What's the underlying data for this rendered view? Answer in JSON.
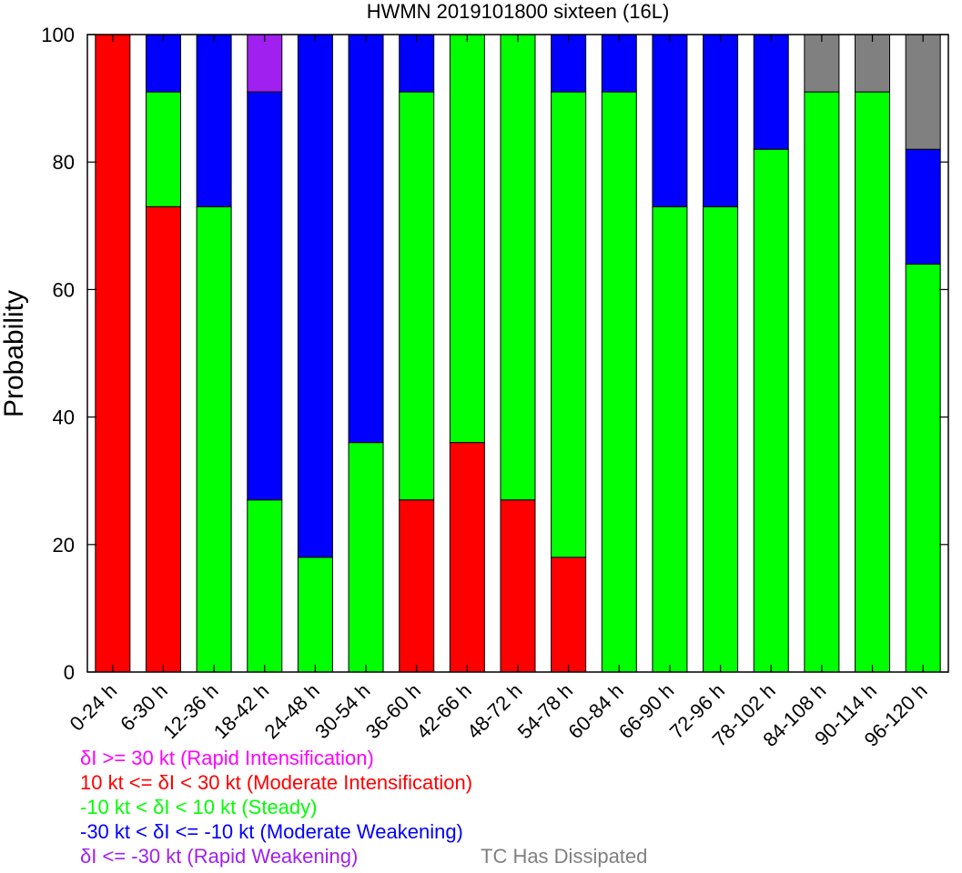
{
  "chart_data": {
    "type": "bar",
    "stacked": true,
    "title": "HWMN 2019101800 sixteen (16L)",
    "xlabel": "",
    "ylabel": "Probability",
    "ylim": [
      0,
      100
    ],
    "yticks": [
      0,
      20,
      40,
      60,
      80,
      100
    ],
    "grid": false,
    "categories": [
      "0-24 h",
      "6-30 h",
      "12-36 h",
      "18-42 h",
      "24-48 h",
      "30-54 h",
      "36-60 h",
      "42-66 h",
      "48-72 h",
      "54-78 h",
      "60-84 h",
      "66-90 h",
      "72-96 h",
      "78-102 h",
      "84-108 h",
      "90-114 h",
      "96-120 h"
    ],
    "series": [
      {
        "name": "δI >= 30 kt (Rapid Intensification)",
        "color": "#ff00ff",
        "values": [
          0,
          0,
          0,
          0,
          0,
          0,
          0,
          0,
          0,
          0,
          0,
          0,
          0,
          0,
          0,
          0,
          0
        ]
      },
      {
        "name": "10 kt <= δI < 30 kt (Moderate Intensification)",
        "color": "#ff0000",
        "values": [
          100,
          73,
          0,
          0,
          0,
          0,
          27,
          36,
          27,
          18,
          0,
          0,
          0,
          0,
          0,
          0,
          0
        ]
      },
      {
        "name": "-10 kt < δI < 10 kt (Steady)",
        "color": "#00ff00",
        "values": [
          0,
          18,
          73,
          27,
          18,
          36,
          64,
          64,
          73,
          73,
          91,
          73,
          73,
          82,
          91,
          91,
          64
        ]
      },
      {
        "name": "-30 kt < δI <= -10 kt (Moderate Weakening)",
        "color": "#0000ff",
        "values": [
          0,
          9,
          27,
          64,
          82,
          64,
          9,
          0,
          0,
          9,
          9,
          27,
          27,
          18,
          0,
          0,
          18
        ]
      },
      {
        "name": "δI <= -30 kt (Rapid Weakening)",
        "color": "#a020f0",
        "values": [
          0,
          0,
          0,
          9,
          0,
          0,
          0,
          0,
          0,
          0,
          0,
          0,
          0,
          0,
          0,
          0,
          0
        ]
      },
      {
        "name": "TC Has Dissipated",
        "color": "#808080",
        "values": [
          0,
          0,
          0,
          0,
          0,
          0,
          0,
          0,
          0,
          0,
          0,
          0,
          0,
          0,
          9,
          9,
          18
        ]
      }
    ]
  },
  "legend": {
    "ri": "δI >= 30 kt (Rapid Intensification)",
    "mi": "10 kt <= δI < 30 kt (Moderate Intensification)",
    "steady": "-10 kt < δI < 10 kt (Steady)",
    "mw": "-30 kt < δI <= -10 kt (Moderate Weakening)",
    "rw": "δI <= -30 kt (Rapid Weakening)",
    "dissipated": "TC Has Dissipated"
  },
  "colors": {
    "ri_text": "#ff00ff",
    "mi_text": "#ff0000",
    "steady_text": "#00ff00",
    "mw_text": "#0000ff",
    "rw_text": "#a020f0",
    "dissipated_text": "#808080"
  }
}
